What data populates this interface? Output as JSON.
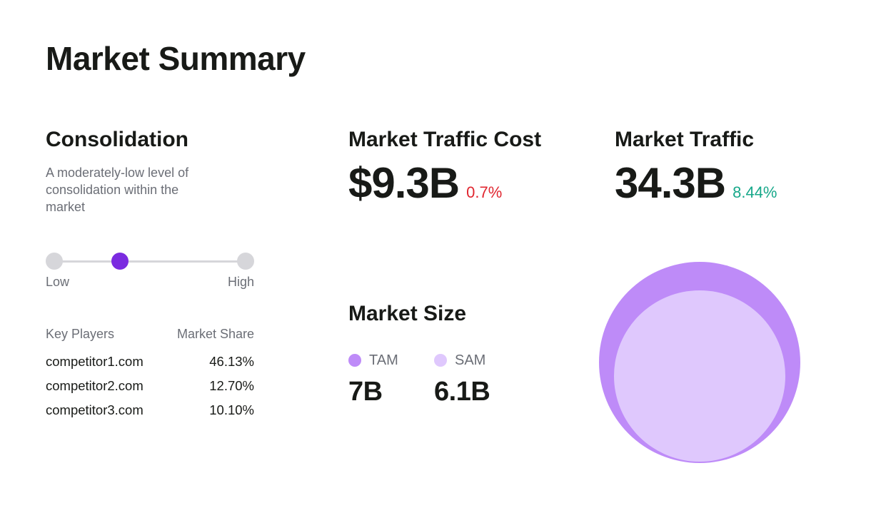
{
  "page": {
    "title": "Market Summary"
  },
  "consolidation": {
    "title": "Consolidation",
    "description": "A moderately-low level of consolidation within the market",
    "scale": {
      "low_label": "Low",
      "high_label": "High",
      "levels": 4,
      "selected_level": 2
    },
    "players_header": {
      "name": "Key Players",
      "share": "Market Share"
    },
    "players": [
      {
        "name": "competitor1.com",
        "share": "46.13%"
      },
      {
        "name": "competitor2.com",
        "share": "12.70%"
      },
      {
        "name": "competitor3.com",
        "share": "10.10%"
      }
    ]
  },
  "traffic_cost": {
    "title": "Market Traffic Cost",
    "value": "$9.3B",
    "change": "0.7%",
    "change_color": "#e0252f"
  },
  "traffic": {
    "title": "Market Traffic",
    "value": "34.3B",
    "change": "8.44%",
    "change_color": "#17a88a"
  },
  "market_size": {
    "title": "Market Size",
    "tam": {
      "label": "TAM",
      "value": "7B",
      "color": "#be8bf8"
    },
    "sam": {
      "label": "SAM",
      "value": "6.1B",
      "color": "#dfc8fd"
    }
  },
  "colors": {
    "accent": "#7b2be0",
    "inactive": "#d6d6da",
    "muted_text": "#6b6e76"
  }
}
